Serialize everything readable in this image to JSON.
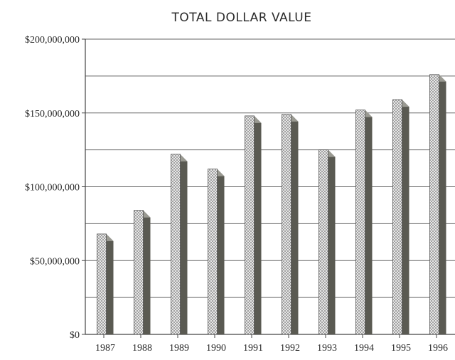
{
  "chart_data": {
    "type": "bar",
    "title": "TOTAL DOLLAR VALUE",
    "xlabel": "",
    "ylabel": "",
    "categories": [
      "1987",
      "1988",
      "1989",
      "1990",
      "1991",
      "1992",
      "1993",
      "1994",
      "1995",
      "1996"
    ],
    "values": [
      68000000,
      84000000,
      122000000,
      112000000,
      148000000,
      149000000,
      125000000,
      152000000,
      159000000,
      176000000
    ],
    "ylim": [
      0,
      200000000
    ],
    "yticks": [
      {
        "value": 0,
        "label": "$0"
      },
      {
        "value": 50000000,
        "label": "$50,000,000"
      },
      {
        "value": 100000000,
        "label": "$100,000,000"
      },
      {
        "value": 150000000,
        "label": "$150,000,000"
      },
      {
        "value": 200000000,
        "label": "$200,000,000"
      }
    ],
    "gridlines": [
      25000000,
      50000000,
      75000000,
      100000000,
      125000000,
      150000000,
      175000000,
      200000000
    ],
    "grid": true,
    "colors": {
      "bar_face": "#e8e8e8",
      "bar_dot": "#6f6f6f",
      "bar_side": "#5a5a52",
      "bar_top": "#9a9a92",
      "axis": "#444444",
      "grid": "#666666"
    }
  }
}
